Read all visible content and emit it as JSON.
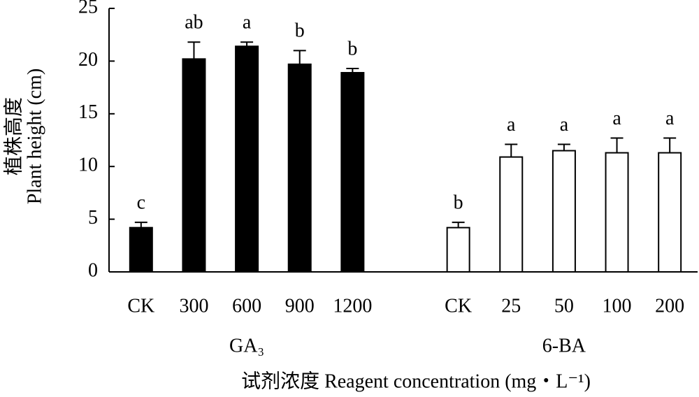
{
  "chart_data": {
    "type": "bar",
    "ylabel": [
      "植株高度",
      "Plant height (cm)"
    ],
    "xlabel": "试剂浓度 Reagent concentration (mg・L⁻¹)",
    "ylim": [
      0,
      25
    ],
    "yticks": [
      0,
      5,
      10,
      15,
      20,
      25
    ],
    "series": [
      {
        "name": "GA₃",
        "color": "#000000",
        "categories": [
          "CK",
          "300",
          "600",
          "900",
          "1200"
        ],
        "values": [
          4.2,
          20.2,
          21.4,
          19.7,
          18.9
        ],
        "errors": [
          0.5,
          1.6,
          0.4,
          1.3,
          0.4
        ],
        "letters": [
          "c",
          "ab",
          "a",
          "b",
          "b"
        ]
      },
      {
        "name": "6-BA",
        "color": "#ffffff",
        "categories": [
          "CK",
          "25",
          "50",
          "100",
          "200"
        ],
        "values": [
          4.2,
          10.9,
          11.5,
          11.3,
          11.3
        ],
        "errors": [
          0.5,
          1.2,
          0.6,
          1.4,
          1.4
        ],
        "letters": [
          "b",
          "a",
          "a",
          "a",
          "a"
        ]
      }
    ]
  }
}
